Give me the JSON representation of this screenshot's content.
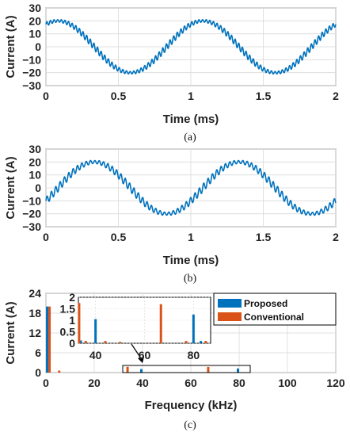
{
  "colors": {
    "proposed": "#0072BD",
    "conventional": "#D95319",
    "grid": "#d9d9d9",
    "axis": "#333333"
  },
  "chart_data": [
    {
      "type": "line",
      "panel": "(a)",
      "caption": "(a)",
      "xlabel": "Time (ms)",
      "ylabel": "Current (A)",
      "xlim": [
        0,
        2
      ],
      "ylim": [
        -30,
        30
      ],
      "xticks": [
        "0",
        "0.5",
        "1",
        "1.5",
        "2"
      ],
      "yticks": [
        "30",
        "20",
        "10",
        "0",
        "−10",
        "−20",
        "−30"
      ],
      "grid": true,
      "series": [
        {
          "amplitude": 20,
          "frequency_khz": 1,
          "phase_deg": 60,
          "ripple_amplitude": 2.5,
          "ripple_frequency_khz": 40,
          "x": [
            0,
            0.25,
            0.5,
            0.75,
            1.0,
            1.25,
            1.5,
            1.75,
            2.0
          ],
          "y": [
            17.3,
            10,
            -17.3,
            -10,
            17.3,
            10,
            -17.3,
            -10,
            17.3
          ]
        }
      ]
    },
    {
      "type": "line",
      "panel": "(b)",
      "caption": "(b)",
      "xlabel": "Time (ms)",
      "ylabel": "Current (A)",
      "xlim": [
        0,
        2
      ],
      "ylim": [
        -30,
        30
      ],
      "xticks": [
        "0",
        "0.5",
        "1",
        "1.5",
        "2"
      ],
      "yticks": [
        "30",
        "20",
        "10",
        "0",
        "−10",
        "−20",
        "−30"
      ],
      "grid": true,
      "series": [
        {
          "amplitude": 20,
          "frequency_khz": 1,
          "phase_deg": -30,
          "ripple_amplitude": 3,
          "ripple_frequency_khz": 33.3,
          "x": [
            0,
            0.25,
            0.5,
            0.75,
            1.0,
            1.25,
            1.5,
            1.75,
            2.0
          ],
          "y": [
            -10,
            17.3,
            10,
            -17.3,
            -10,
            17.3,
            10,
            -17.3,
            -10
          ]
        }
      ]
    },
    {
      "type": "bar",
      "panel": "(c)",
      "caption": "(c)",
      "xlabel": "Frequency (kHz)",
      "ylabel": "Current (A)",
      "xlim": [
        0,
        120
      ],
      "ylim": [
        0,
        24
      ],
      "xticks": [
        "0",
        "20",
        "40",
        "60",
        "80",
        "100",
        "120"
      ],
      "yticks": [
        "24",
        "18",
        "12",
        "6",
        "0"
      ],
      "grid": true,
      "legend": {
        "placement": "top-right",
        "entries": [
          "Proposed",
          "Conventional"
        ]
      },
      "series": [
        {
          "name": "Proposed",
          "x": [
            1,
            40,
            80
          ],
          "values": [
            20,
            1.05,
            1.25
          ]
        },
        {
          "name": "Conventional",
          "x": [
            1,
            5,
            33.3,
            66.7
          ],
          "values": [
            20,
            0.6,
            1.75,
            1.7
          ]
        }
      ],
      "inset": {
        "xlim": [
          33,
          87
        ],
        "ylim": [
          0,
          2
        ],
        "xticks": [
          "40",
          "60",
          "80"
        ],
        "yticks": [
          "2",
          "1.5",
          "1",
          "0.5",
          "0"
        ],
        "series": [
          {
            "name": "Proposed",
            "x": [
              34,
              40,
              80,
              83
            ],
            "values": [
              0.12,
              1.05,
              1.25,
              0.1
            ]
          },
          {
            "name": "Conventional",
            "x": [
              33.3,
              36,
              44,
              50,
              66.7,
              77,
              85
            ],
            "values": [
              1.75,
              0.1,
              0.1,
              0.06,
              1.7,
              0.1,
              0.1
            ]
          }
        ]
      }
    }
  ]
}
